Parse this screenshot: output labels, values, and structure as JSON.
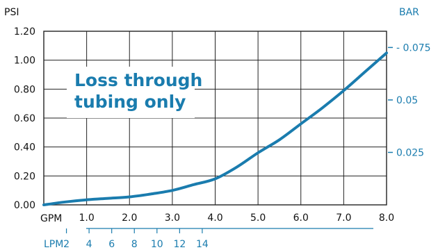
{
  "chart_data": {
    "type": "line",
    "left_axis_label": "PSI",
    "right_axis_label": "BAR",
    "x_axis_label": "GPM",
    "secondary_x_axis_label": "LPM",
    "xlim": [
      0,
      8
    ],
    "ylim": [
      0,
      1.2
    ],
    "x_ticks": [
      "1.0",
      "2.0",
      "3.0",
      "4.0",
      "5.0",
      "6.0",
      "7.0",
      "8.0"
    ],
    "y_ticks": [
      "0.00",
      "0.20",
      "0.40",
      "0.60",
      "0.80",
      "1.00",
      "1.20"
    ],
    "right_ticks": [
      {
        "label": "0.025",
        "value": 0.025
      },
      {
        "label": "0.05",
        "value": 0.05
      },
      {
        "label": "- 0.075",
        "value": 0.075
      }
    ],
    "lpm_ticks": [
      {
        "label": "2",
        "value": 2
      },
      {
        "label": "4",
        "value": 4
      },
      {
        "label": "6",
        "value": 6
      },
      {
        "label": "8",
        "value": 8
      },
      {
        "label": "10",
        "value": 10
      },
      {
        "label": "12",
        "value": 12
      },
      {
        "label": "14",
        "value": 14
      }
    ],
    "series": [
      {
        "x": [
          0,
          0.5,
          1,
          1.5,
          2,
          2.5,
          3,
          3.5,
          4,
          4.5,
          5,
          5.5,
          6,
          6.5,
          7,
          7.5,
          8
        ],
        "y": [
          0,
          0.02,
          0.035,
          0.045,
          0.055,
          0.075,
          0.1,
          0.14,
          0.18,
          0.26,
          0.36,
          0.45,
          0.56,
          0.67,
          0.79,
          0.92,
          1.05
        ],
        "color": "#1a7cae"
      }
    ],
    "annotation": [
      "Loss through",
      "tubing only"
    ],
    "grid": true
  },
  "colors": {
    "accent": "#1a7cae",
    "grid": "#222222"
  }
}
